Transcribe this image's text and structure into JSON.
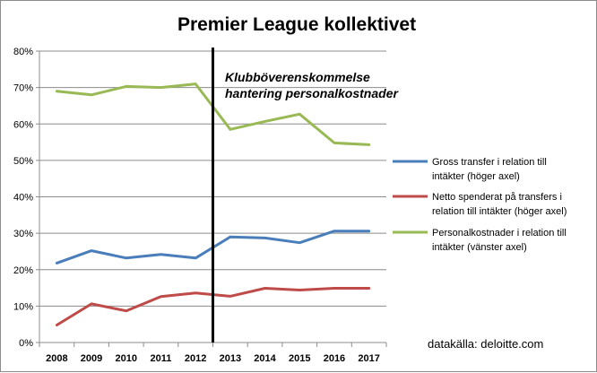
{
  "chart_data": {
    "type": "line",
    "title": "Premier League kollektivet",
    "categories": [
      "2008",
      "2009",
      "2010",
      "2011",
      "2012",
      "2013",
      "2014",
      "2015",
      "2016",
      "2017"
    ],
    "y_tick_labels": [
      "0%",
      "10%",
      "20%",
      "30%",
      "40%",
      "50%",
      "60%",
      "70%",
      "80%"
    ],
    "ylim": [
      0,
      80
    ],
    "grid": "horizontal",
    "legend_position": "right",
    "series": [
      {
        "name_lines": [
          "Gross transfer i relation till",
          "intäkter (höger axel)"
        ],
        "color": "#4a7ebb",
        "values": [
          21.8,
          25.2,
          23.2,
          24.2,
          23.2,
          29.0,
          28.7,
          27.4,
          30.6,
          30.6
        ]
      },
      {
        "name_lines": [
          "Netto spenderat på transfers i",
          "relation till intäkter (höger axel)"
        ],
        "color": "#be4b48",
        "values": [
          4.8,
          10.6,
          8.7,
          12.6,
          13.6,
          12.7,
          14.9,
          14.4,
          14.9,
          14.9
        ]
      },
      {
        "name_lines": [
          "Personalkostnader i relation till",
          "intäkter (vänster axel)"
        ],
        "color": "#98b954",
        "values": [
          69.0,
          68.0,
          70.3,
          70.0,
          71.0,
          58.5,
          60.7,
          62.7,
          54.8,
          54.3
        ]
      }
    ],
    "annotation": {
      "lines": [
        "Klubböverenskommelse",
        "hantering personalkostnader"
      ],
      "marker_between": [
        "2012",
        "2013"
      ]
    },
    "source": "datakälla: deloitte.com"
  }
}
